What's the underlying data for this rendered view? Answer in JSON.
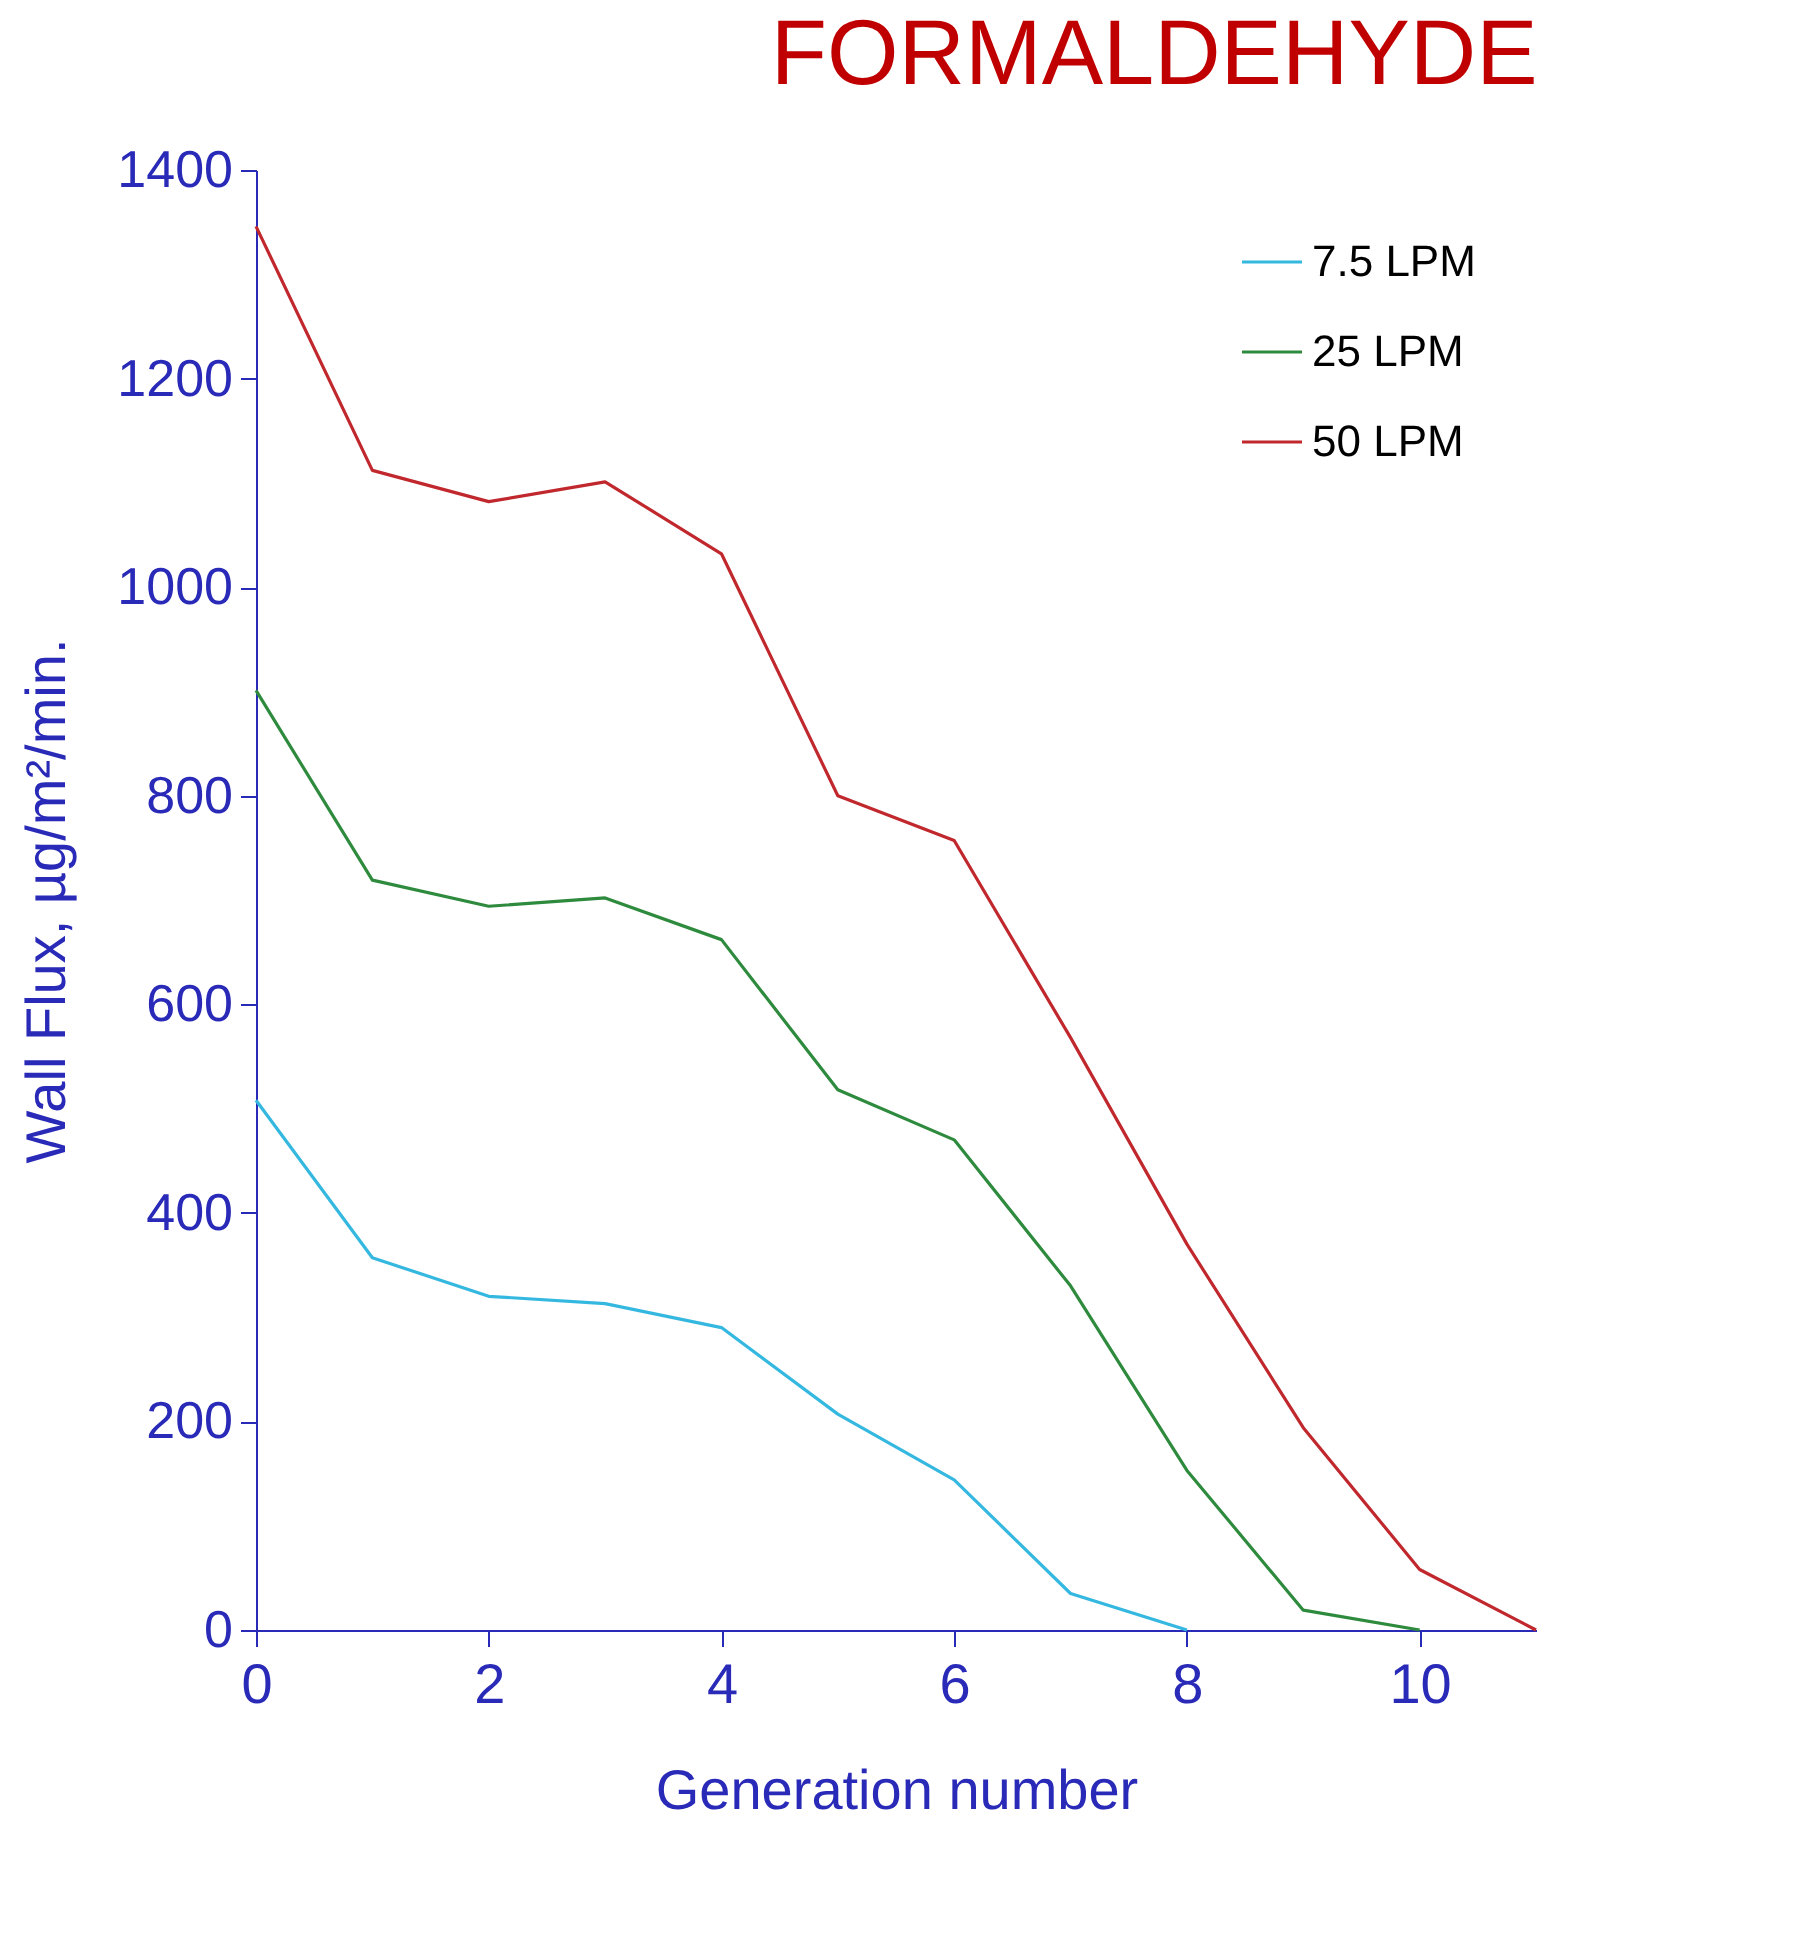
{
  "chart_data": {
    "type": "line",
    "title": "FORMALDEHYDE",
    "xlabel": "Generation number",
    "ylabel": "Wall Flux, µg/m²/min.",
    "xlim": [
      0,
      11
    ],
    "xticks": [
      0,
      2,
      4,
      6,
      8,
      10
    ],
    "ylim": [
      0,
      1400
    ],
    "yticks": [
      0,
      200,
      400,
      600,
      800,
      1000,
      1200,
      1400
    ],
    "grid": false,
    "legend": "top right",
    "marker": "none",
    "line_style": "solid",
    "series": [
      {
        "name": "7.5 LPM",
        "color": "#35b8e0",
        "x": [
          0,
          1,
          2,
          3,
          4,
          5,
          6,
          7,
          8
        ],
        "values": [
          508,
          357,
          320,
          313,
          290,
          207,
          144,
          35,
          0
        ]
      },
      {
        "name": "25 LPM",
        "color": "#2e8b3e",
        "x": [
          0,
          1,
          2,
          3,
          4,
          5,
          6,
          7,
          8,
          9,
          10
        ],
        "values": [
          901,
          719,
          694,
          702,
          662,
          518,
          470,
          330,
          153,
          19,
          0
        ]
      },
      {
        "name": "50 LPM",
        "color": "#c0282d",
        "x": [
          0,
          1,
          2,
          3,
          4,
          5,
          6,
          7,
          8,
          9,
          10,
          11
        ],
        "values": [
          1346,
          1112,
          1082,
          1101,
          1032,
          800,
          757,
          568,
          370,
          194,
          58,
          0
        ]
      }
    ]
  }
}
